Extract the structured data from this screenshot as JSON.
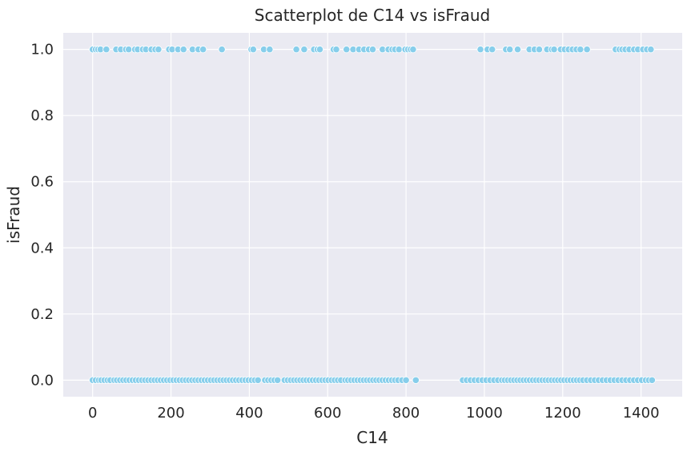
{
  "chart_data": {
    "type": "scatter",
    "title": "Scatterplot de C14 vs isFraud",
    "xlabel": "C14",
    "ylabel": "isFraud",
    "xlim": [
      -75,
      1505
    ],
    "ylim": [
      -0.05,
      1.05
    ],
    "xticks": [
      0,
      200,
      400,
      600,
      800,
      1000,
      1200,
      1400
    ],
    "yticks": [
      0.0,
      0.2,
      0.4,
      0.6,
      0.8,
      1.0
    ],
    "xtick_labels": [
      "0",
      "200",
      "400",
      "600",
      "800",
      "1000",
      "1200",
      "1400"
    ],
    "ytick_labels": [
      "0.0",
      "0.2",
      "0.4",
      "0.6",
      "0.8",
      "1.0"
    ],
    "grid": true,
    "colors": {
      "background": "#eaeaf2",
      "grid": "#ffffff",
      "marker": "#87ceeb",
      "marker_edge": "#ffffff"
    },
    "series": [
      {
        "y": 1,
        "x": [
          0,
          8,
          14,
          20,
          35,
          60,
          72,
          85,
          92,
          108,
          115,
          128,
          136,
          150,
          160,
          168,
          195,
          203,
          218,
          232,
          255,
          270,
          282,
          330,
          405,
          410,
          437,
          452,
          520,
          540,
          565,
          574,
          580,
          615,
          622,
          648,
          665,
          680,
          693,
          705,
          715,
          740,
          755,
          765,
          772,
          782,
          798,
          805,
          812,
          818,
          990,
          1008,
          1020,
          1055,
          1065,
          1085,
          1115,
          1128,
          1140,
          1160,
          1172,
          1178,
          1195,
          1205,
          1215,
          1225,
          1235,
          1245,
          1262,
          1335,
          1345,
          1352,
          1360,
          1370,
          1382,
          1392,
          1405,
          1415,
          1425
        ]
      },
      {
        "y": 0,
        "x": [
          0,
          8,
          16,
          22,
          30,
          38,
          45,
          55,
          62,
          70,
          78,
          86,
          94,
          102,
          110,
          118,
          126,
          134,
          142,
          150,
          158,
          166,
          174,
          182,
          190,
          198,
          206,
          214,
          222,
          230,
          238,
          246,
          254,
          262,
          270,
          278,
          286,
          294,
          302,
          310,
          318,
          326,
          334,
          342,
          350,
          358,
          366,
          374,
          382,
          390,
          398,
          406,
          414,
          422,
          440,
          448,
          456,
          464,
          472,
          490,
          498,
          506,
          514,
          522,
          530,
          538,
          546,
          554,
          562,
          570,
          578,
          586,
          594,
          602,
          610,
          618,
          626,
          634,
          645,
          652,
          660,
          668,
          676,
          684,
          692,
          700,
          708,
          716,
          724,
          732,
          740,
          748,
          756,
          764,
          772,
          780,
          790,
          800,
          825,
          945,
          955,
          965,
          975,
          985,
          995,
          1005,
          1015,
          1025,
          1035,
          1045,
          1052,
          1060,
          1068,
          1076,
          1084,
          1092,
          1100,
          1108,
          1116,
          1124,
          1132,
          1140,
          1148,
          1156,
          1164,
          1172,
          1180,
          1188,
          1196,
          1204,
          1212,
          1220,
          1228,
          1236,
          1244,
          1252,
          1262,
          1272,
          1282,
          1292,
          1302,
          1312,
          1322,
          1332,
          1342,
          1352,
          1362,
          1372,
          1382,
          1392,
          1402,
          1412,
          1420,
          1428
        ]
      }
    ]
  }
}
